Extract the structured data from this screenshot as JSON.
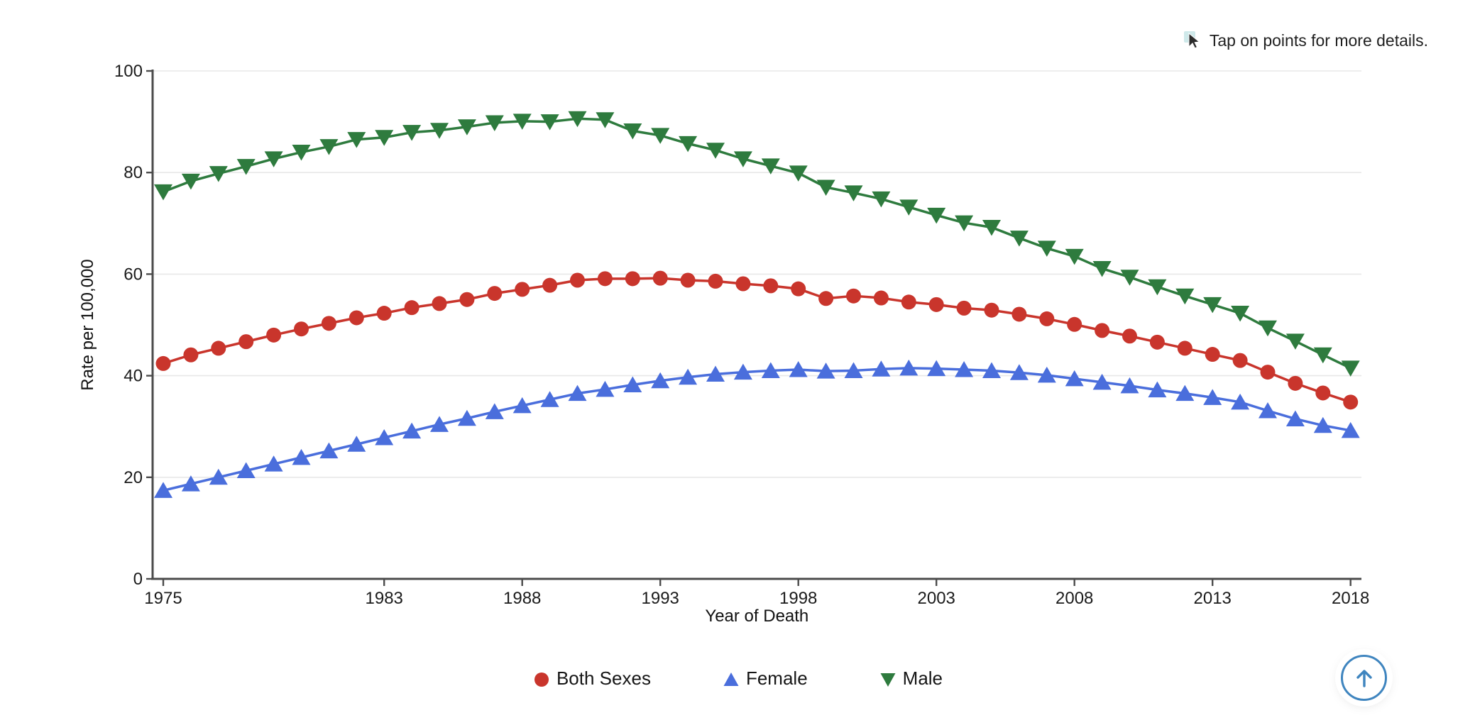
{
  "hint": {
    "text": "Tap on points for more details.",
    "icon": "cursor-pointer-icon"
  },
  "legend": {
    "position": "bottom"
  },
  "scroll_top_button": {
    "icon": "arrow-up-icon",
    "color": "#3f85bf"
  },
  "colors": {
    "grid": "#e8e8e8",
    "axis": "#4b4b4b",
    "tick_text": "#1b1b1b"
  },
  "chart_data": {
    "type": "line",
    "title": "",
    "xlabel": "Year of Death",
    "ylabel": "Rate per 100,000",
    "xlim": [
      1975,
      2018
    ],
    "ylim": [
      0,
      100
    ],
    "grid": "horizontal",
    "legend_position": "bottom",
    "x_ticks": [
      1975,
      1983,
      1988,
      1993,
      1998,
      2003,
      2008,
      2013,
      2018
    ],
    "y_ticks": [
      0,
      20,
      40,
      60,
      80,
      100
    ],
    "x": [
      1975,
      1976,
      1977,
      1978,
      1979,
      1980,
      1981,
      1982,
      1983,
      1984,
      1985,
      1986,
      1987,
      1988,
      1989,
      1990,
      1991,
      1992,
      1993,
      1994,
      1995,
      1996,
      1997,
      1998,
      1999,
      2000,
      2001,
      2002,
      2003,
      2004,
      2005,
      2006,
      2007,
      2008,
      2009,
      2010,
      2011,
      2012,
      2013,
      2014,
      2015,
      2016,
      2017,
      2018
    ],
    "series": [
      {
        "name": "Both Sexes",
        "marker": "circle",
        "color": "#c9352c",
        "values": [
          42.4,
          44.1,
          45.4,
          46.7,
          48.0,
          49.2,
          50.3,
          51.4,
          52.3,
          53.4,
          54.2,
          55.0,
          56.2,
          57.0,
          57.8,
          58.8,
          59.1,
          59.1,
          59.2,
          58.8,
          58.6,
          58.1,
          57.7,
          57.1,
          55.2,
          55.7,
          55.3,
          54.5,
          54.0,
          53.3,
          52.9,
          52.1,
          51.2,
          50.1,
          48.9,
          47.8,
          46.6,
          45.4,
          44.2,
          43.0,
          40.7,
          38.5,
          36.6,
          34.8
        ]
      },
      {
        "name": "Female",
        "marker": "triangle-up",
        "color": "#4a6edc",
        "values": [
          17.4,
          18.7,
          20.0,
          21.3,
          22.6,
          23.9,
          25.2,
          26.5,
          27.8,
          29.1,
          30.4,
          31.6,
          32.9,
          34.1,
          35.3,
          36.5,
          37.3,
          38.2,
          39.0,
          39.7,
          40.3,
          40.7,
          41.0,
          41.2,
          40.9,
          41.0,
          41.3,
          41.5,
          41.4,
          41.2,
          41.0,
          40.6,
          40.1,
          39.4,
          38.7,
          38.0,
          37.2,
          36.5,
          35.7,
          34.8,
          33.1,
          31.5,
          30.2,
          29.2
        ]
      },
      {
        "name": "Male",
        "marker": "triangle-down",
        "color": "#2e7b3e",
        "values": [
          76.2,
          78.3,
          79.8,
          81.2,
          82.7,
          84.0,
          85.1,
          86.5,
          86.9,
          87.9,
          88.3,
          89.0,
          89.8,
          90.1,
          90.0,
          90.6,
          90.4,
          88.2,
          87.3,
          85.7,
          84.4,
          82.7,
          81.3,
          79.9,
          77.1,
          76.0,
          74.8,
          73.2,
          71.6,
          70.1,
          69.2,
          67.1,
          65.1,
          63.5,
          61.1,
          59.4,
          57.5,
          55.7,
          54.0,
          52.3,
          49.4,
          46.8,
          44.1,
          41.5
        ]
      }
    ]
  }
}
